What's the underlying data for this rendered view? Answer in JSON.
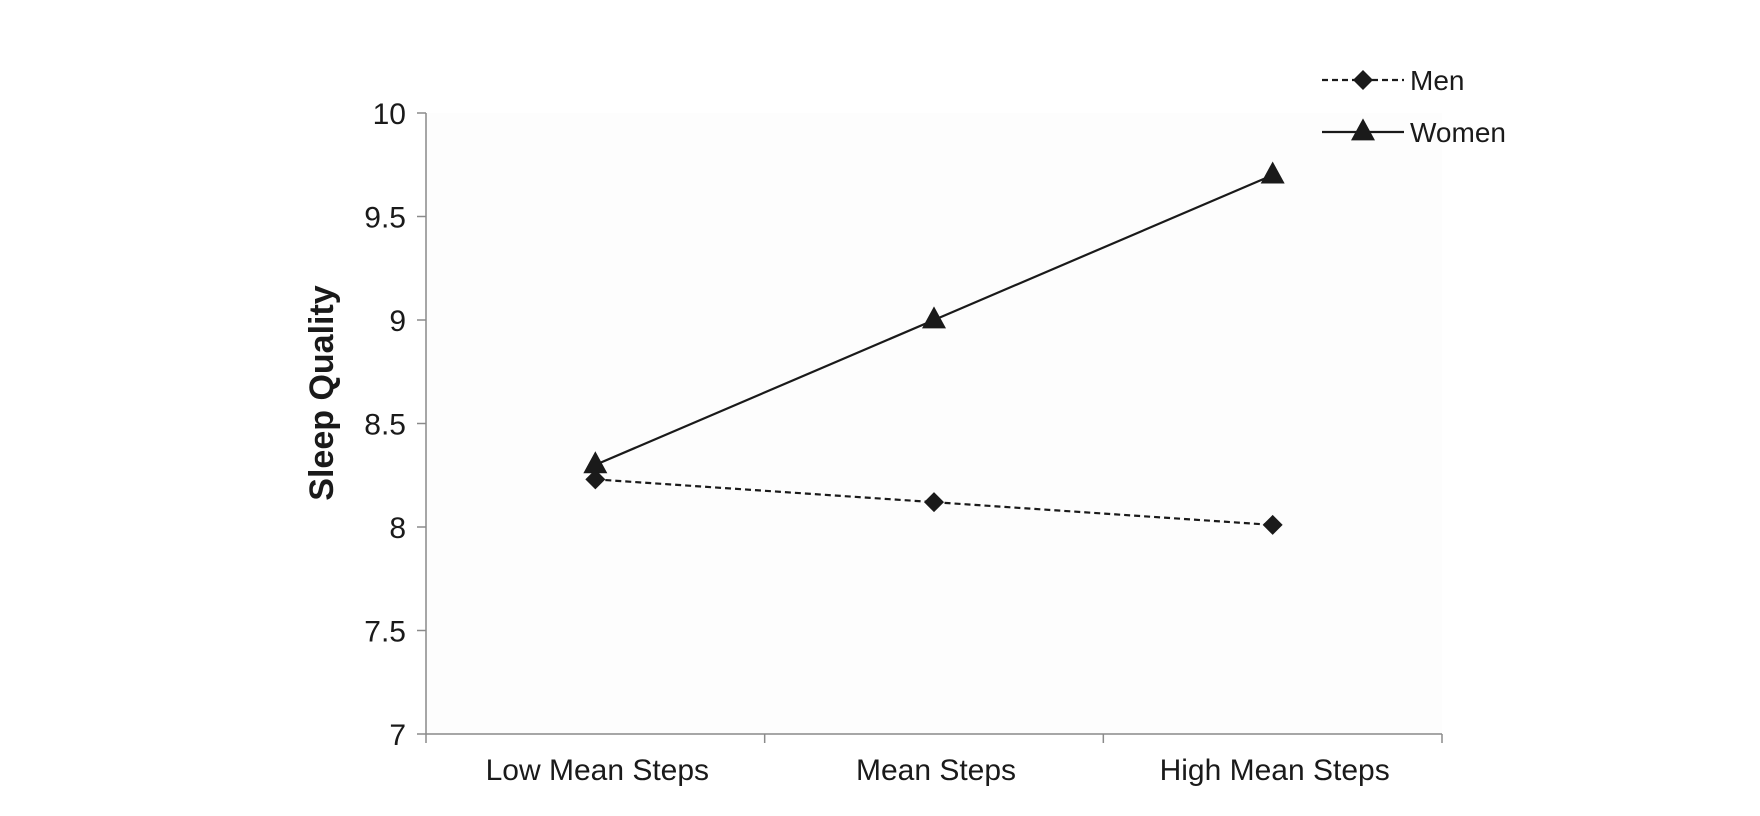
{
  "chart_data": {
    "type": "line",
    "title": "",
    "xlabel": "",
    "ylabel": "Sleep Quality",
    "categories": [
      "Low Mean Steps",
      "Mean Steps",
      "High Mean Steps"
    ],
    "ylim": [
      7,
      10
    ],
    "yticks": [
      "7",
      "7.5",
      "8",
      "8.5",
      "9",
      "9.5",
      "10"
    ],
    "yticks_values": [
      7,
      7.5,
      8,
      8.5,
      9,
      9.5,
      10
    ],
    "grid": false,
    "legend_position": "top-right",
    "series": [
      {
        "name": "Men",
        "values": [
          8.23,
          8.12,
          8.01
        ],
        "marker": "diamond",
        "line_style": "dashed",
        "color": "#1a1a1a"
      },
      {
        "name": "Women",
        "values": [
          8.3,
          9.0,
          9.7
        ],
        "marker": "triangle",
        "line_style": "solid",
        "color": "#1a1a1a"
      }
    ]
  }
}
